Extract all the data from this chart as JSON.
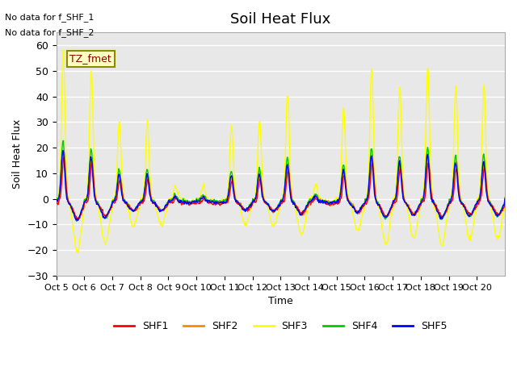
{
  "title": "Soil Heat Flux",
  "xlabel": "Time",
  "ylabel": "Soil Heat Flux",
  "ylim": [
    -30,
    65
  ],
  "yticks": [
    -30,
    -20,
    -10,
    0,
    10,
    20,
    30,
    40,
    50,
    60
  ],
  "background_color": "#ffffff",
  "plot_bg_color": "#e8e8e8",
  "grid_color": "#ffffff",
  "annotations": [
    "No data for f_SHF_1",
    "No data for f_SHF_2"
  ],
  "legend_box_text": "TZ_fmet",
  "legend_box_color": "#ffffc0",
  "legend_box_edge": "#8b8b00",
  "series_colors": {
    "SHF1": "#ff0000",
    "SHF2": "#ff8800",
    "SHF3": "#ffff00",
    "SHF4": "#00cc00",
    "SHF5": "#0000ff"
  },
  "xtick_labels": [
    "Oct 5",
    "Oct 6",
    "Oct 7",
    "Oct 8",
    "Oct 9",
    "Oct 10",
    "Oct 11",
    "Oct 12",
    "Oct 13",
    "Oct 14",
    "Oct 15",
    "Oct 16",
    "Oct 17",
    "Oct 18",
    "Oct 19",
    "Oct 20"
  ],
  "n_days": 16,
  "points_per_day": 48
}
